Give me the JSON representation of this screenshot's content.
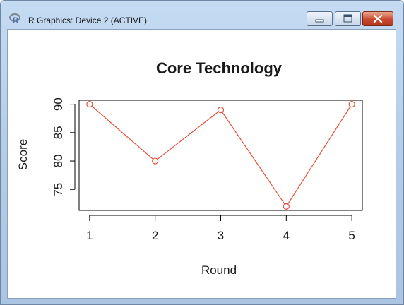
{
  "window": {
    "title": "R Graphics: Device 2 (ACTIVE)"
  },
  "icons": {
    "app": "r-logo-icon",
    "minimize": "minimize-icon",
    "maximize": "maximize-icon",
    "close": "close-icon"
  },
  "colors": {
    "series": "#e8503a",
    "close_button": "#c84a2d"
  },
  "chart_data": {
    "type": "line",
    "title": "Core Technology",
    "xlabel": "Round",
    "ylabel": "Score",
    "x": [
      1,
      2,
      3,
      4,
      5
    ],
    "values": [
      90,
      80,
      89,
      72,
      90
    ],
    "xticks": [
      "1",
      "2",
      "3",
      "4",
      "5"
    ],
    "yticks": [
      "75",
      "80",
      "85",
      "90"
    ],
    "xlim": [
      0.84,
      5.16
    ],
    "ylim": [
      71.3,
      90.7
    ],
    "markers": "open-circle",
    "grid": false,
    "legend": "none"
  }
}
